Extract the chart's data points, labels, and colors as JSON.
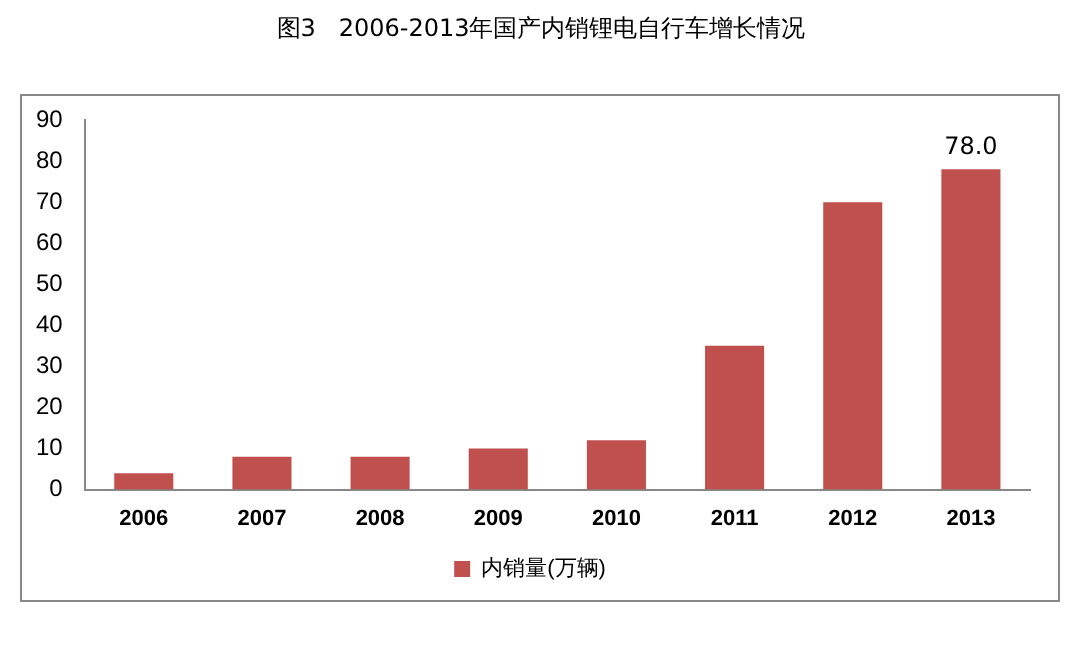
{
  "chart_data": {
    "type": "bar",
    "title": "图3   2006-2013年国产内销锂电自行车增长情况",
    "categories": [
      "2006",
      "2007",
      "2008",
      "2009",
      "2010",
      "2011",
      "2012",
      "2013"
    ],
    "series": [
      {
        "name": "内销量(万辆)",
        "color": "#c0504d",
        "values": [
          4,
          8,
          8,
          10,
          12,
          35,
          70,
          78
        ],
        "value_labels": [
          null,
          null,
          null,
          null,
          null,
          null,
          null,
          "78.0"
        ]
      }
    ],
    "ylim": [
      0,
      90
    ],
    "yticks": [
      0,
      10,
      20,
      30,
      40,
      50,
      60,
      70,
      80,
      90
    ],
    "grid": false,
    "legend": "bottom"
  }
}
